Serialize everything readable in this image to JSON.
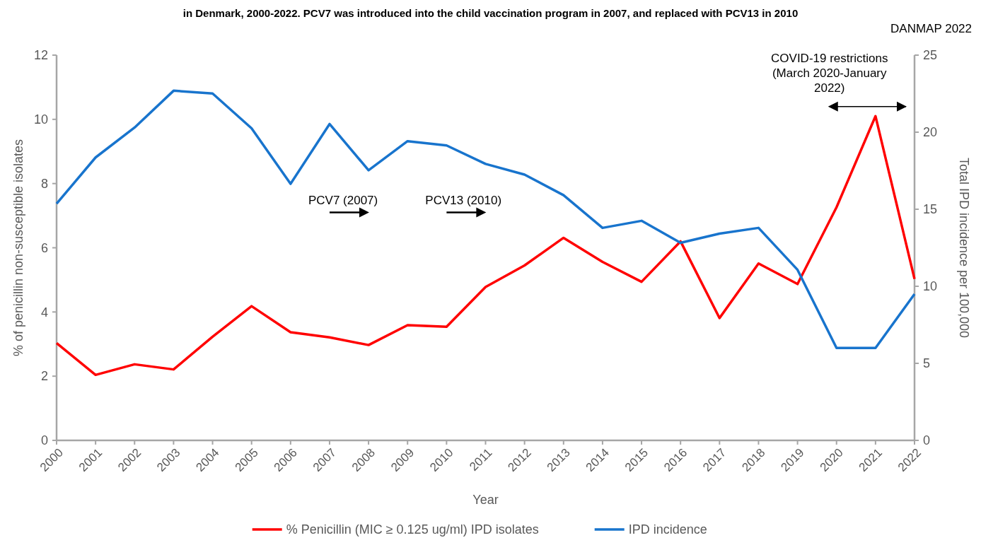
{
  "chart_data": {
    "type": "line",
    "title": "in Denmark, 2000-2022. PCV7 was introduced into the child vaccination program in 2007, and replaced with PCV13 in 2010",
    "subtitle": "DANMAP 2022",
    "xlabel": "Year",
    "ylabel": "% of penicillin non-susceptible isolates",
    "y2label": "Total IPD incidence per 100,000",
    "categories": [
      "2000",
      "2001",
      "2002",
      "2003",
      "2004",
      "2005",
      "2006",
      "2007",
      "2008",
      "2009",
      "2010",
      "2011",
      "2012",
      "2013",
      "2014",
      "2015",
      "2016",
      "2017",
      "2018",
      "2019",
      "2020",
      "2021",
      "2022"
    ],
    "series": [
      {
        "name": "% Penicillin (MIC ≥ 0.125 ug/ml) IPD isolates",
        "color": "#ff0000",
        "values": [
          3.03,
          2.04,
          2.37,
          2.21,
          3.23,
          4.18,
          3.37,
          3.21,
          2.97,
          3.59,
          3.54,
          4.78,
          5.45,
          6.31,
          5.56,
          4.94,
          6.2,
          3.81,
          5.51,
          4.87,
          7.26,
          10.1,
          5.03
        ]
      },
      {
        "name": "IPD incidence",
        "color": "#1874cd",
        "axis": "y2",
        "values": [
          15.36,
          18.36,
          20.3,
          22.69,
          22.51,
          20.25,
          16.65,
          20.53,
          17.53,
          19.42,
          19.14,
          17.94,
          17.25,
          15.91,
          13.79,
          14.25,
          12.82,
          13.42,
          13.79,
          11.07,
          6.0,
          6.0,
          9.5
        ]
      }
    ],
    "ylim": [
      0,
      12
    ],
    "yticks": [
      0,
      2,
      4,
      6,
      8,
      10,
      12
    ],
    "y2lim": [
      0,
      25
    ],
    "y2ticks": [
      0,
      5,
      10,
      15,
      20,
      25
    ],
    "annotations": [
      "PCV7 (2007)",
      "PCV13 (2010)",
      "COVID-19 restrictions (March 2020-January 2022)"
    ],
    "grid": false,
    "legend": "bottom",
    "line_style": "solid",
    "marker": "none"
  }
}
